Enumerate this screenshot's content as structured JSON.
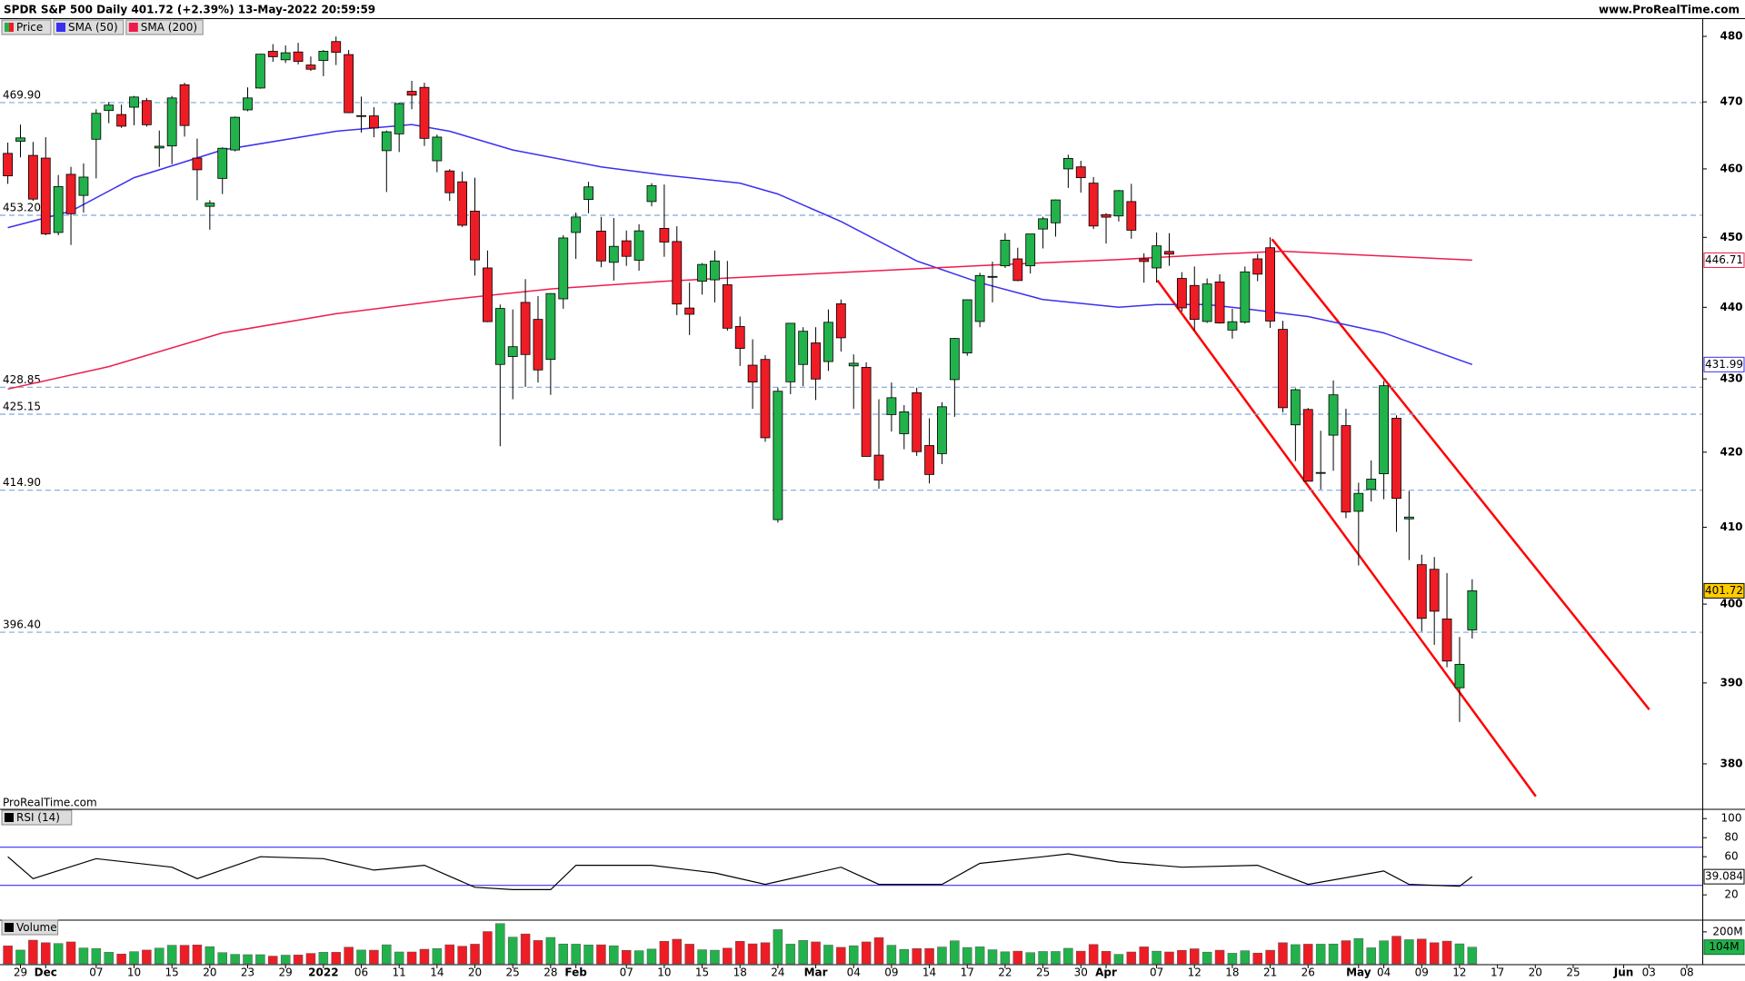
{
  "chart_data": {
    "type": "candlestick",
    "title": "SPDR S&P 500 Daily 401.72 (+2.39%) 13-May-2022 20:59:59",
    "source": "www.ProRealTime.com",
    "watermark": "ProRealTime.com",
    "categories": [
      null,
      "29",
      null,
      "Dec",
      null,
      null,
      null,
      "07",
      null,
      null,
      "10",
      null,
      null,
      "15",
      null,
      null,
      "20",
      null,
      null,
      "23",
      null,
      null,
      "29",
      null,
      null,
      "2022",
      null,
      null,
      "06",
      null,
      null,
      "11",
      null,
      null,
      "14",
      null,
      null,
      "20",
      null,
      null,
      "25",
      null,
      null,
      "28",
      null,
      "Feb",
      null,
      null,
      null,
      "07",
      null,
      null,
      "10",
      null,
      null,
      "15",
      null,
      null,
      "18",
      null,
      null,
      "24",
      null,
      null,
      "Mar",
      null,
      null,
      "04",
      null,
      null,
      "09",
      null,
      null,
      "14",
      null,
      null,
      "17",
      null,
      null,
      "22",
      null,
      null,
      "25",
      null,
      null,
      "30",
      null,
      "Apr",
      null,
      null,
      null,
      "07",
      null,
      null,
      "12",
      null,
      null,
      "18",
      null,
      null,
      "21",
      null,
      null,
      "26",
      null,
      null,
      null,
      "May",
      null,
      "04",
      null,
      null,
      "09",
      null,
      null,
      "12",
      null,
      null,
      "17",
      null,
      null,
      "20",
      null,
      null,
      "25",
      null,
      null,
      null,
      "Jun",
      null,
      "03",
      null,
      null,
      "08"
    ],
    "open": [
      462.3,
      464.1,
      462,
      461.6,
      450.7,
      459.2,
      456.1,
      464.4,
      468.7,
      468.1,
      469.2,
      470.2,
      463.1,
      463.4,
      472.6,
      461.6,
      454.5,
      458.6,
      462.8,
      468.8,
      472.1,
      477.7,
      476.4,
      477.6,
      475.6,
      476.3,
      479.2,
      477.2,
      467.9,
      467.9,
      462.7,
      465.2,
      471.6,
      472.2,
      461.2,
      459.7,
      458.1,
      453.8,
      445.6,
      432,
      433.1,
      440.7,
      438.3,
      432.7,
      441.2,
      450.7,
      455.5,
      450.9,
      446.4,
      449.5,
      446.7,
      455.2,
      451.3,
      449.4,
      439.9,
      443.7,
      443.9,
      443.2,
      437.3,
      431.9,
      432.7,
      411,
      429.6,
      432,
      435,
      432.4,
      440.5,
      431.8,
      431.6,
      419.6,
      425.1,
      422.5,
      428.1,
      420.9,
      419.8,
      429.9,
      433.6,
      438,
      444.3,
      445.9,
      446.9,
      445.9,
      451.2,
      452.1,
      460,
      460.3,
      457.9,
      453.3,
      453.1,
      455.2,
      446.9,
      445.6,
      447.97,
      444.1,
      443.1,
      438,
      443.6,
      436.8,
      437.9,
      446.9,
      448.5,
      436.9,
      423.7,
      425.8,
      417.2,
      422.3,
      423.6,
      412.1,
      415,
      417.1,
      424.6,
      411.1,
      405.1,
      404.5,
      398.1,
      389.4,
      396.7,
      null,
      null,
      null,
      null,
      null,
      null,
      null,
      null,
      null,
      null,
      null,
      null,
      null,
      null,
      null,
      null,
      null
    ],
    "high": [
      463.9,
      466.6,
      464,
      464.7,
      459.1,
      460.3,
      460.8,
      468.9,
      470,
      469.6,
      470.9,
      470.6,
      465.7,
      470.9,
      472.9,
      464.5,
      455.4,
      463.2,
      467.8,
      472.2,
      477.3,
      478.8,
      478.6,
      479,
      476.9,
      477.9,
      479.98,
      477.9,
      470.8,
      469.2,
      465.7,
      469.9,
      473.2,
      472.9,
      465.1,
      459.96,
      459.6,
      458.7,
      448.1,
      440.4,
      439.7,
      444,
      441.6,
      442,
      450.3,
      453.6,
      458.1,
      452.97,
      452.8,
      450.99,
      451.9,
      457.9,
      457.7,
      451.6,
      443.5,
      446.3,
      448.1,
      446.6,
      438.7,
      435.5,
      433.3,
      428.8,
      437.8,
      437.2,
      437.2,
      439.7,
      441.1,
      433.4,
      432.3,
      427.2,
      429.5,
      426.4,
      428.8,
      424.6,
      426.8,
      435.7,
      441.1,
      444.9,
      446.5,
      450.6,
      448.5,
      450.5,
      452.98,
      455.5,
      462.1,
      461.2,
      458.8,
      453.5,
      456.9,
      457.8,
      447.7,
      450.7,
      450.6,
      445,
      445.8,
      444.1,
      444.7,
      439.8,
      445.8,
      447.6,
      450,
      438.1,
      428.7,
      426,
      422.9,
      429.8,
      425.9,
      415.9,
      418.9,
      429.7,
      425,
      414.8,
      406.4,
      406.1,
      404,
      395.8,
      403.2,
      null,
      null,
      null,
      null,
      null,
      null,
      null,
      null,
      null,
      null,
      null,
      null,
      null,
      null,
      null,
      null,
      null
    ],
    "low": [
      457.8,
      461.7,
      455.3,
      450.3,
      450.3,
      448.9,
      453.6,
      458.6,
      466.8,
      466.1,
      466.5,
      466.3,
      460.3,
      460.7,
      464.8,
      455.4,
      451.1,
      456.3,
      462.6,
      468.6,
      472,
      476.1,
      475.9,
      475.7,
      474.7,
      473.9,
      475.6,
      468.3,
      465.4,
      464.7,
      456.6,
      462.5,
      468.9,
      463.4,
      459.5,
      455.3,
      451.5,
      444.5,
      437.9,
      420.8,
      427.2,
      428.9,
      429.5,
      427.8,
      439.8,
      446.9,
      453.5,
      445.7,
      443.8,
      445.9,
      445.2,
      454.5,
      447.2,
      438.9,
      436.1,
      441.8,
      440.7,
      436.7,
      431.8,
      425.9,
      421.4,
      410.6,
      427.9,
      429,
      427.1,
      431.1,
      433.8,
      425.9,
      419.4,
      415.1,
      422.8,
      420.4,
      419.5,
      415.8,
      418.4,
      424.8,
      433.2,
      437.2,
      440.7,
      445.6,
      443.7,
      444.8,
      448.4,
      450.1,
      457.2,
      456.5,
      451.2,
      449.1,
      452.3,
      449.8,
      443.5,
      443.5,
      445.9,
      439.4,
      436.7,
      437.8,
      437.7,
      435.6,
      437.7,
      443.7,
      437.1,
      425.4,
      418.8,
      416.1,
      415,
      417.5,
      411.2,
      405,
      413.4,
      413.7,
      409.4,
      405.7,
      396.5,
      394.8,
      391.97,
      385.15,
      395.6,
      null,
      null,
      null,
      null,
      null,
      null,
      null,
      null,
      null,
      null,
      null,
      null,
      null,
      null,
      null,
      null,
      null
    ],
    "close": [
      458.97,
      464.6,
      455.56,
      450.5,
      457.4,
      453.42,
      458.79,
      468.28,
      469.52,
      466.35,
      470.74,
      466.57,
      463.36,
      470.6,
      466.45,
      459.87,
      454.98,
      463.06,
      467.69,
      470.6,
      477.26,
      476.87,
      477.48,
      476.16,
      474.96,
      477.71,
      477.55,
      468.38,
      467.94,
      466.09,
      465.51,
      469.75,
      471.02,
      464.53,
      464.72,
      456.49,
      451.75,
      446.75,
      437.98,
      439.84,
      434.47,
      433.38,
      431.24,
      441.95,
      449.91,
      452.95,
      457.35,
      446.6,
      448.7,
      447.26,
      450.94,
      457.54,
      449.32,
      440.46,
      439.02,
      446.1,
      446.6,
      437.06,
      434.23,
      429.57,
      421.95,
      428.3,
      437.75,
      436.63,
      429.98,
      437.89,
      435.71,
      432.17,
      419.43,
      416.25,
      427.41,
      425.48,
      420.07,
      417,
      426.17,
      435.62,
      441.07,
      444.52,
      444.39,
      449.59,
      443.8,
      450.49,
      452.69,
      455.44,
      461.55,
      458.7,
      451.64,
      452.92,
      456.8,
      451.03,
      446.52,
      448.77,
      447.57,
      439.92,
      438.29,
      443.31,
      437.79,
      437.97,
      445.04,
      444.71,
      438.06,
      426.04,
      428.51,
      416.1,
      417.27,
      427.81,
      412,
      414.48,
      416.38,
      429.06,
      413.81,
      411.34,
      398.17,
      399.09,
      392.75,
      392.34,
      401.72,
      null,
      null,
      null,
      null,
      null,
      null,
      null,
      null,
      null,
      null,
      null,
      null,
      null,
      null,
      null,
      null,
      null
    ],
    "up_color": "#22b24c",
    "down_color": "#ee1c25",
    "last_color": "#ffcc00",
    "log_scale": true,
    "ylim": [
      374.6,
      482.7
    ],
    "yticks": [
      380,
      390,
      400,
      410,
      420,
      430,
      440,
      450,
      460,
      470,
      480
    ],
    "levels": [
      {
        "value": 469.9,
        "label": "469.90"
      },
      {
        "value": 453.2,
        "label": "453.20"
      },
      428.85,
      425.15,
      {
        "value": 414.9,
        "label": "414.90"
      },
      {
        "value": 396.4,
        "label": "396.40"
      }
    ],
    "level_color": "#7fa7d9",
    "series": [
      {
        "name": "Price",
        "color": "#22b24c"
      },
      {
        "name": "SMA (50)",
        "color": "#3a2ff0",
        "x": [
          0,
          5,
          10,
          17,
          26,
          32,
          35,
          40,
          47,
          52,
          58,
          61,
          66,
          72,
          77,
          82,
          88,
          91,
          95,
          98,
          103,
          109,
          116
        ],
        "values": [
          451.4,
          453.8,
          458.7,
          462.8,
          465.6,
          466.6,
          465.6,
          462.8,
          460.3,
          459.1,
          457.9,
          456.3,
          452.3,
          446.6,
          443.5,
          441.1,
          440,
          440.4,
          440.4,
          439.8,
          438.7,
          436.4,
          431.99
        ]
      },
      {
        "name": "SMA (200)",
        "color": "#ee1c4a",
        "x": [
          0,
          8,
          17,
          26,
          35,
          43,
          52,
          61,
          70,
          79,
          88,
          96,
          101,
          116
        ],
        "values": [
          428.6,
          431.7,
          436.4,
          439.1,
          441.1,
          442.6,
          443.7,
          444.5,
          445.3,
          446.1,
          446.8,
          447.6,
          448,
          446.71
        ]
      }
    ],
    "rsi": {
      "name": "RSI (14)",
      "color": "#000000",
      "x": [
        0,
        2,
        7,
        13,
        15,
        20,
        25,
        29,
        33,
        37,
        40,
        43,
        45,
        51,
        56,
        60,
        66,
        69,
        74,
        77,
        82,
        84,
        88,
        93,
        99,
        103,
        109,
        111,
        115,
        116
      ],
      "values": [
        60,
        37,
        58,
        49,
        37,
        60,
        58,
        46,
        51,
        28,
        25.5,
        25.5,
        51,
        51,
        43,
        31,
        49,
        31,
        31,
        53,
        60,
        63,
        54.5,
        49,
        51,
        31,
        45,
        31,
        29,
        39.084
      ],
      "ylim": [
        -4.6,
        107.8
      ],
      "yticks": [
        20,
        60,
        80,
        100
      ],
      "levels": [
        30,
        70
      ],
      "level_color": "#3a2ff0"
    },
    "volume": {
      "name": "Volume",
      "values": [
        112,
        86,
        148,
        132,
        127,
        137,
        99,
        95,
        72,
        61,
        76,
        86,
        98,
        116,
        116,
        118,
        107,
        70,
        59,
        57,
        57,
        48,
        54,
        55,
        65,
        72,
        72,
        104,
        86,
        85,
        119,
        74,
        74,
        91,
        95,
        119,
        110,
        123,
        202,
        252,
        167,
        187,
        146,
        165,
        124,
        123,
        118,
        119,
        113,
        84,
        82,
        92,
        141,
        154,
        123,
        88,
        85,
        98,
        141,
        125,
        132,
        214,
        123,
        146,
        137,
        117,
        103,
        113,
        137,
        164,
        116,
        90,
        95,
        96,
        105,
        144,
        102,
        106,
        88,
        75,
        79,
        70,
        77,
        77,
        97,
        79,
        121,
        78,
        59,
        74,
        106,
        79,
        74,
        84,
        94,
        73,
        85,
        66,
        82,
        67,
        85,
        132,
        120,
        123,
        123,
        124,
        145,
        158,
        100,
        144,
        173,
        151,
        155,
        132,
        142,
        125,
        104,
        null,
        null,
        null,
        null,
        null,
        null,
        null,
        null,
        null,
        null,
        null,
        null,
        null,
        null,
        null,
        null,
        null
      ],
      "value_labels": [
        null,
        null,
        null,
        null,
        null,
        null,
        null,
        null,
        null,
        null,
        null,
        null,
        null,
        null,
        null,
        null,
        null,
        null,
        null,
        null,
        null,
        null,
        null,
        null,
        null,
        null,
        null,
        null,
        null,
        null,
        null,
        null,
        null,
        null,
        null,
        null,
        null,
        null,
        null,
        null,
        null,
        null,
        null,
        null,
        null,
        null,
        null,
        null,
        null,
        null,
        null,
        null,
        null,
        null,
        null,
        null,
        null,
        null,
        null,
        null,
        null,
        null,
        null,
        null,
        null,
        null,
        null,
        null,
        null,
        null,
        null,
        null,
        null,
        null,
        null,
        null,
        null,
        null,
        null,
        null,
        null,
        null,
        null,
        null,
        null,
        null,
        null,
        null,
        null,
        null,
        null,
        null,
        null,
        null,
        null,
        null,
        null,
        null,
        null,
        null,
        null,
        null,
        null,
        null,
        null,
        null,
        null,
        null,
        null,
        null,
        null,
        null,
        null,
        null,
        null,
        null,
        "104M",
        null,
        null,
        null,
        null,
        null,
        null,
        null,
        null,
        null,
        null,
        null,
        null,
        null,
        null,
        null,
        null,
        null
      ],
      "ylim": [
        0,
        262
      ],
      "yticks": [
        {
          "value": 200,
          "label": "200M"
        }
      ]
    }
  }
}
